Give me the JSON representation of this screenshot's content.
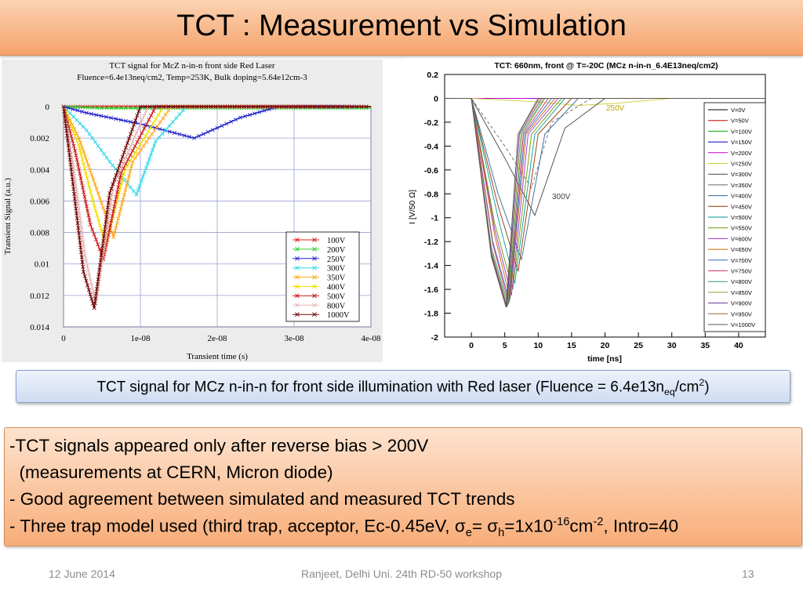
{
  "slide": {
    "title": "TCT : Measurement vs Simulation",
    "caption": {
      "prefix": "TCT signal for MCz n-in-n for front side illumination with Red laser (Fluence = 6.4e13n",
      "sub": "eq",
      "mid": "/cm",
      "sup": "2",
      "suffix": ")"
    },
    "notes": {
      "line1": "-TCT signals appeared only after reverse bias > 200V",
      "line2": "  (measurements at CERN, Micron diode)",
      "line3": "- Good agreement between simulated and measured TCT trends",
      "line4": {
        "part1": "- Three trap model used (third trap, acceptor, Ec-0.45eV, ",
        "sigma1": "σ",
        "sub1": "e",
        "part2": "= ",
        "sigma2": "σ",
        "sub2": "h",
        "part3": "=1x10",
        "sup1": "-16",
        "part4": "cm",
        "sup2": "-2",
        "part5": ", Intro=40"
      }
    },
    "footer": {
      "date": "12 June 2014",
      "center": "Ranjeet, Delhi Uni. 24th RD-50 workshop",
      "page": "13"
    }
  },
  "chart_data": [
    {
      "type": "line",
      "title": "TCT signal for McZ n-in-n front side Red Laser",
      "subtitle": "Fluence=6.4e13neq/cm2, Temp=253K, Bulk doping=5.64e12cm-3",
      "xlabel": "Transient time (s)",
      "ylabel": "Transient Signal (a.u.)",
      "xlim": [
        0,
        4e-08
      ],
      "ylim": [
        0.014,
        0
      ],
      "xticks": [
        "0",
        "1e-08",
        "2e-08",
        "3e-08",
        "4e-08"
      ],
      "yticks": [
        "0",
        "0.002",
        "0.004",
        "0.006",
        "0.008",
        "0.01",
        "0.012",
        "0.014"
      ],
      "grid": true,
      "legend_position": "bottom-right",
      "series": [
        {
          "name": "100V",
          "color": "#e02020",
          "x": [
            0,
            5e-09,
            1e-08,
            4e-08
          ],
          "y": [
            0,
            0,
            0,
            0
          ]
        },
        {
          "name": "200V",
          "color": "#30d030",
          "x": [
            0,
            5e-09,
            1e-08,
            4e-08
          ],
          "y": [
            0,
            0.0001,
            0.0001,
            0.0001
          ]
        },
        {
          "name": "250V",
          "color": "#2222cc",
          "x": [
            0,
            3e-09,
            1e-08,
            1.7e-08,
            2.3e-08,
            2.8e-08,
            4e-08
          ],
          "y": [
            0,
            0.0004,
            0.0011,
            0.002,
            0.0007,
            0,
            0
          ]
        },
        {
          "name": "300V",
          "color": "#30d8e8",
          "x": [
            0,
            3e-09,
            6e-09,
            9.5e-09,
            1.2e-08,
            1.6e-08,
            4e-08
          ],
          "y": [
            0,
            0.0015,
            0.0035,
            0.0056,
            0.0022,
            0,
            0
          ]
        },
        {
          "name": "350V",
          "color": "#ffa820",
          "x": [
            0,
            2e-09,
            4.5e-09,
            6.5e-09,
            9e-09,
            1.4e-08,
            4e-08
          ],
          "y": [
            0,
            0.002,
            0.0055,
            0.0083,
            0.0035,
            0,
            0
          ]
        },
        {
          "name": "400V",
          "color": "#f0e000",
          "x": [
            0,
            2e-09,
            4e-09,
            5.5e-09,
            8e-09,
            1.3e-08,
            4e-08
          ],
          "y": [
            0,
            0.0025,
            0.0063,
            0.0088,
            0.004,
            0,
            0
          ]
        },
        {
          "name": "500V",
          "color": "#cc1818",
          "x": [
            0,
            1.5e-09,
            3.5e-09,
            5.2e-09,
            7.5e-09,
            1.2e-08,
            4e-08
          ],
          "y": [
            0,
            0.0028,
            0.0075,
            0.0097,
            0.0042,
            0,
            0
          ]
        },
        {
          "name": "800V",
          "color": "#e6b8b8",
          "x": [
            0,
            1.2e-09,
            2.8e-09,
            4.2e-09,
            6.5e-09,
            1.1e-08,
            4e-08
          ],
          "y": [
            0,
            0.0035,
            0.0095,
            0.0125,
            0.005,
            0,
            0
          ]
        },
        {
          "name": "1000V",
          "color": "#700000",
          "x": [
            0,
            1e-09,
            2.6e-09,
            4e-09,
            6e-09,
            1e-08,
            4e-08
          ],
          "y": [
            0,
            0.004,
            0.0105,
            0.0128,
            0.0055,
            0,
            0
          ]
        }
      ]
    },
    {
      "type": "line",
      "title": "TCT: 660nm, front @ T=-20C (MCz n-in-n_6.4E13neq/cm2)",
      "xlabel": "time [ns]",
      "ylabel": "I [V/50 Ω]",
      "xlim": [
        -4,
        44
      ],
      "ylim": [
        -2,
        0.2
      ],
      "xticks": [
        "0",
        "5",
        "10",
        "15",
        "20",
        "25",
        "30",
        "35",
        "40"
      ],
      "yticks": [
        "0.2",
        "0",
        "-0.2",
        "-0.4",
        "-0.6",
        "-0.8",
        "-1",
        "-1.2",
        "-1.4",
        "-1.6",
        "-1.8",
        "-2"
      ],
      "grid": false,
      "legend_position": "right",
      "annotations": [
        "250V",
        "300V"
      ],
      "series": [
        {
          "name": "V=0V",
          "color": "#000000",
          "x": [
            -4,
            44
          ],
          "y": [
            0,
            0
          ]
        },
        {
          "name": "V=50V",
          "color": "#cc0000",
          "x": [
            -4,
            44
          ],
          "y": [
            0,
            0
          ]
        },
        {
          "name": "V=100V",
          "color": "#00aa00",
          "x": [
            -4,
            44
          ],
          "y": [
            0,
            0
          ]
        },
        {
          "name": "V=150V",
          "color": "#0000cc",
          "x": [
            -4,
            44
          ],
          "y": [
            0,
            0
          ]
        },
        {
          "name": "V=200V",
          "color": "#cc00cc",
          "x": [
            -4,
            44
          ],
          "y": [
            0,
            0
          ]
        },
        {
          "name": "V=250V",
          "color": "#cccc33",
          "x": [
            -4,
            0,
            10,
            16,
            22,
            30,
            44
          ],
          "y": [
            0,
            0,
            -0.03,
            -0.06,
            -0.04,
            0,
            0
          ]
        },
        {
          "name": "V=300V",
          "color": "#444444",
          "x": [
            -4,
            0,
            5,
            9.5,
            14,
            20,
            44
          ],
          "y": [
            0,
            0,
            -0.5,
            -0.98,
            -0.25,
            0,
            0
          ]
        },
        {
          "name": "V=350V",
          "color": "#666666",
          "x": [
            -4,
            0,
            5,
            9,
            12,
            18,
            44
          ],
          "y": [
            0,
            0,
            -0.4,
            -0.75,
            -0.2,
            0,
            0
          ]
        },
        {
          "name": "V=400V",
          "color": "#336699",
          "x": [
            -4,
            0,
            4,
            7.5,
            11,
            16,
            44
          ],
          "y": [
            0,
            0,
            -0.8,
            -1.35,
            -0.3,
            0,
            0
          ]
        },
        {
          "name": "V=450V",
          "color": "#993300",
          "x": [
            -4,
            0,
            4,
            7,
            10,
            15,
            44
          ],
          "y": [
            0,
            0,
            -0.9,
            -1.45,
            -0.3,
            0,
            0
          ]
        },
        {
          "name": "V=500V",
          "color": "#009999",
          "x": [
            -4,
            0,
            4,
            6.5,
            9.5,
            14,
            44
          ],
          "y": [
            0,
            0,
            -1.0,
            -1.55,
            -0.3,
            0,
            0
          ]
        },
        {
          "name": "V=550V",
          "color": "#669900",
          "x": [
            -4,
            0,
            3.5,
            6.2,
            9,
            13.5,
            44
          ],
          "y": [
            0,
            0,
            -1.05,
            -1.6,
            -0.3,
            0,
            0
          ]
        },
        {
          "name": "V=600V",
          "color": "#9933cc",
          "x": [
            -4,
            0,
            3.5,
            6,
            8.5,
            13,
            44
          ],
          "y": [
            0,
            0,
            -1.1,
            -1.65,
            -0.3,
            0,
            0
          ]
        },
        {
          "name": "V=650V",
          "color": "#cc6600",
          "x": [
            -4,
            0,
            3.5,
            5.8,
            8.2,
            12.5,
            44
          ],
          "y": [
            0,
            0,
            -1.15,
            -1.68,
            -0.3,
            0,
            0
          ]
        },
        {
          "name": "V=700V",
          "color": "#3366cc",
          "x": [
            -4,
            0,
            3.2,
            5.7,
            8,
            12,
            44
          ],
          "y": [
            0,
            0,
            -1.2,
            -1.7,
            -0.3,
            0,
            0
          ]
        },
        {
          "name": "V=750V",
          "color": "#cc3366",
          "x": [
            -4,
            0,
            3.2,
            5.6,
            7.8,
            11.5,
            44
          ],
          "y": [
            0,
            0,
            -1.22,
            -1.72,
            -0.3,
            0,
            0
          ]
        },
        {
          "name": "V=800V",
          "color": "#339966",
          "x": [
            -4,
            0,
            3,
            5.5,
            7.6,
            11,
            44
          ],
          "y": [
            0,
            0,
            -1.25,
            -1.73,
            -0.3,
            0,
            0
          ]
        },
        {
          "name": "V=850V",
          "color": "#999933",
          "x": [
            -4,
            0,
            3,
            5.4,
            7.4,
            10.8,
            44
          ],
          "y": [
            0,
            0,
            -1.28,
            -1.74,
            -0.3,
            0,
            0
          ]
        },
        {
          "name": "V=900V",
          "color": "#663399",
          "x": [
            -4,
            0,
            3,
            5.3,
            7.2,
            10.5,
            44
          ],
          "y": [
            0,
            0,
            -1.3,
            -1.75,
            -0.3,
            0,
            0
          ]
        },
        {
          "name": "V=950V",
          "color": "#996633",
          "x": [
            -4,
            0,
            3,
            5.2,
            7,
            10.2,
            44
          ],
          "y": [
            0,
            0,
            -1.32,
            -1.75,
            -0.3,
            0,
            0
          ]
        },
        {
          "name": "V=1000V",
          "color": "#555555",
          "x": [
            -4,
            0,
            3,
            5.2,
            7,
            10,
            44
          ],
          "y": [
            0,
            0,
            -1.33,
            -1.75,
            -0.3,
            0,
            0
          ]
        }
      ]
    }
  ]
}
